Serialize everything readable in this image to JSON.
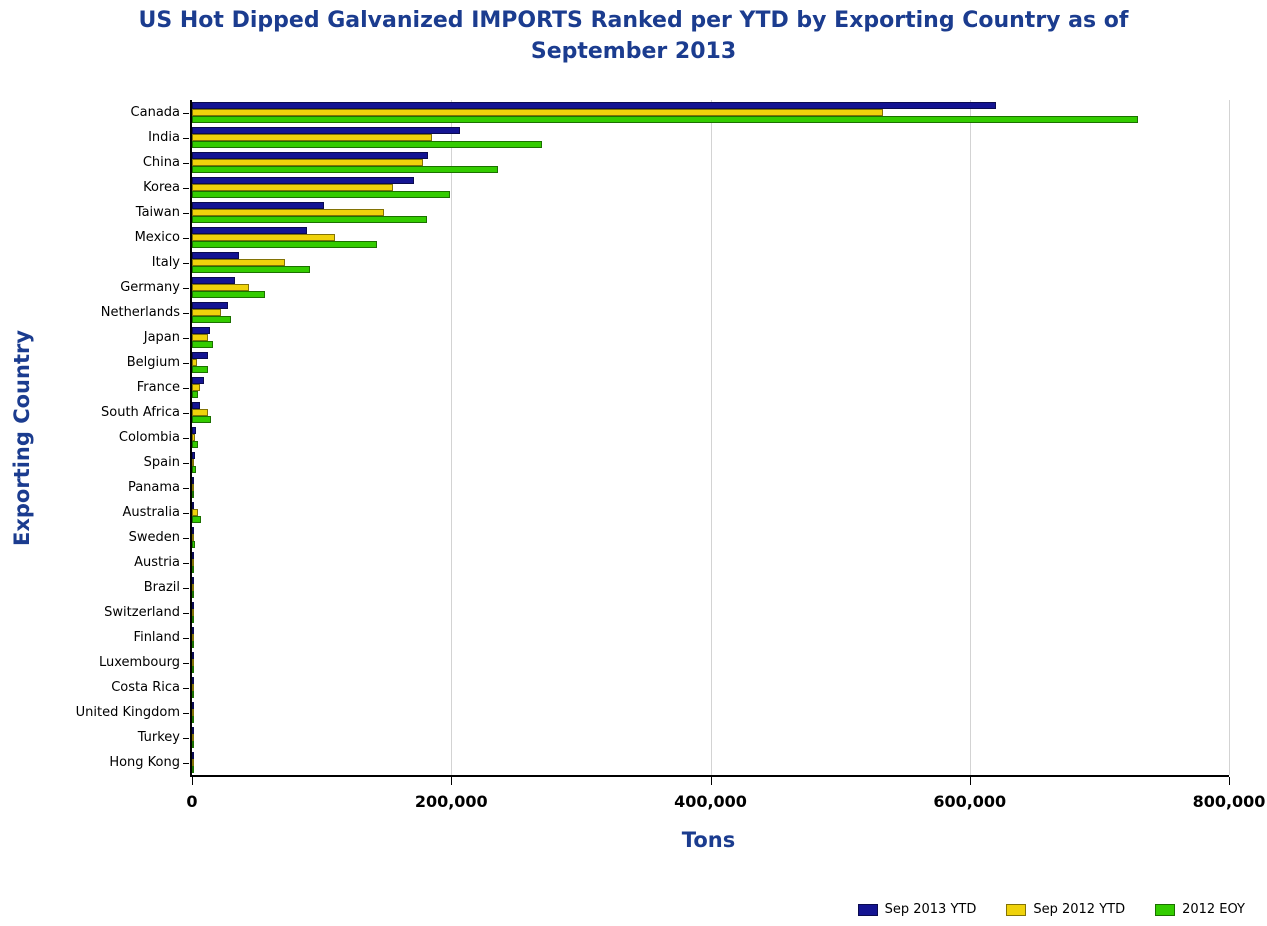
{
  "title": {
    "line1": "US Hot Dipped Galvanized IMPORTS Ranked per YTD by Exporting Country as of",
    "line2": "September 2013"
  },
  "colors": {
    "title_navy": "#1B3C8F",
    "axis_line": "#000000",
    "gridline": "#D3D3D3"
  },
  "chart_data": {
    "type": "bar",
    "orientation": "horizontal",
    "title": "US Hot Dipped Galvanized IMPORTS Ranked per YTD by Exporting Country as of September 2013",
    "xlabel": "Tons",
    "ylabel": "Exporting Country",
    "xlim": [
      0,
      800000
    ],
    "x_ticks": [
      0,
      200000,
      400000,
      600000,
      800000
    ],
    "x_tick_labels": [
      "0",
      "200,000",
      "400,000",
      "600,000",
      "800,000"
    ],
    "grid": "vertical-lines-at-x-ticks",
    "legend_position": "bottom-right",
    "categories": [
      "Canada",
      "India",
      "China",
      "Korea",
      "Taiwan",
      "Mexico",
      "Italy",
      "Germany",
      "Netherlands",
      "Japan",
      "Belgium",
      "France",
      "South Africa",
      "Colombia",
      "Spain",
      "Panama",
      "Australia",
      "Sweden",
      "Austria",
      "Brazil",
      "Switzerland",
      "Finland",
      "Luxembourg",
      "Costa Rica",
      "United Kingdom",
      "Turkey",
      "Hong Kong"
    ],
    "series": [
      {
        "name": "Sep 2013 YTD",
        "color": "#141492",
        "values": [
          620000,
          207000,
          182000,
          171000,
          102000,
          89000,
          36000,
          33000,
          28000,
          14000,
          12000,
          9000,
          6000,
          3000,
          2000,
          1500,
          1500,
          800,
          500,
          400,
          300,
          250,
          200,
          150,
          120,
          100,
          60
        ]
      },
      {
        "name": "Sep 2012 YTD",
        "color": "#EFD20B",
        "values": [
          533000,
          185000,
          178000,
          155000,
          148000,
          110000,
          72000,
          44000,
          22000,
          12000,
          4000,
          6000,
          12000,
          2000,
          1500,
          800,
          5000,
          500,
          400,
          300,
          250,
          200,
          150,
          100,
          100,
          80,
          50
        ]
      },
      {
        "name": "2012 EOY",
        "color": "#33CC00",
        "values": [
          730000,
          270000,
          236000,
          199000,
          181000,
          143000,
          91000,
          56000,
          30000,
          16000,
          12000,
          5000,
          15000,
          5000,
          3000,
          1200,
          7000,
          2000,
          600,
          450,
          350,
          280,
          1500,
          180,
          140,
          110,
          60
        ]
      }
    ]
  }
}
